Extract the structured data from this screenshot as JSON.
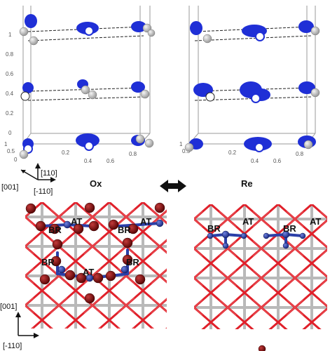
{
  "panels": {
    "left_label": "Ox",
    "right_label": "Re"
  },
  "axes": {
    "z_ticks": [
      "1",
      "0.8",
      "0.6",
      "0.4",
      "0.2",
      "0"
    ],
    "x_ticks_left": [
      "1",
      "0.5",
      "0"
    ],
    "y_ticks_left": [
      "0.2",
      "0.4",
      "0.6",
      "0.8"
    ],
    "x_ticks_right": [
      "1",
      "0.5"
    ],
    "y_ticks_right": [
      "0.2",
      "0.4",
      "0.6",
      "0.8"
    ],
    "top_dir_1": "[001]",
    "top_dir_2": "[110]",
    "top_dir_3": "[-110]",
    "bottom_dir_1": "[001]",
    "bottom_dir_2": "[-110]"
  },
  "site_labels": {
    "ox_br_1": "BR",
    "ox_at_1": "AT",
    "ox_br_2": "BR",
    "ox_at_2": "AT",
    "ox_br_3": "BR",
    "ox_at_3": "AT",
    "ox_br_4": "BR",
    "re_br_1": "BR",
    "re_at_1": "AT",
    "re_br_2": "BR",
    "re_at_2": "AT"
  },
  "colors": {
    "density": "#1f2fd6",
    "density_light": "#8d97f0",
    "atom_grey": "#c8c8c8",
    "oxygen_red": "#e0202a",
    "oxygen_dark": "#8b1010",
    "titanium_blue": "#3347b0",
    "cell_line": "#888888"
  }
}
